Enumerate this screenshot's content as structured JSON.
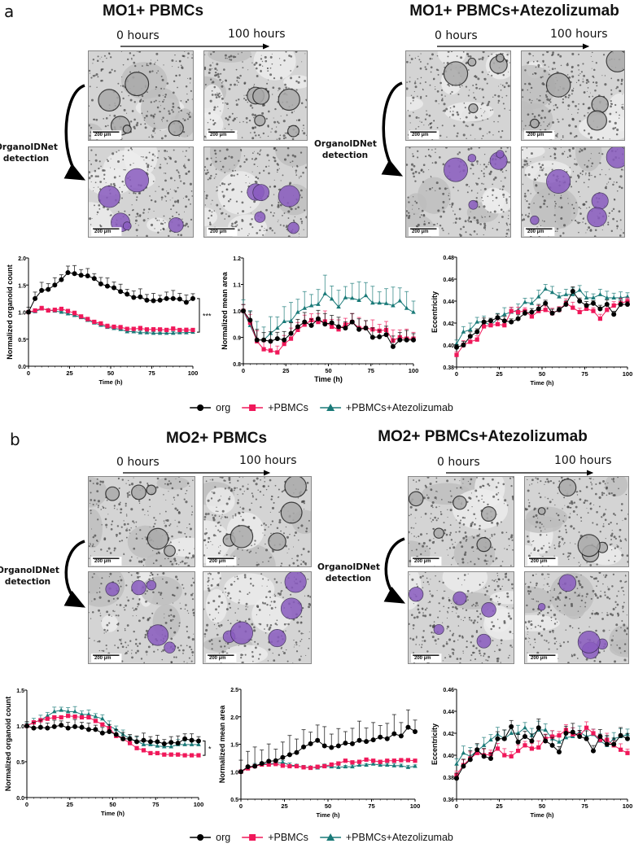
{
  "panels": [
    {
      "letter": "a",
      "left_title": "MO1+ PBMCs",
      "right_title": "MO1+ PBMCs+Atezolizumab",
      "time_start": "0 hours",
      "time_end": "100 hours",
      "detection_label": "OrganoIDNet detection",
      "scale_bar": "200 µm",
      "legend": [
        "org",
        "+PBMCs",
        "+PBMCs+Atezolizumab"
      ]
    },
    {
      "letter": "b",
      "left_title": "MO2+ PBMCs",
      "right_title": "MO2+ PBMCs+Atezolizumab",
      "time_start": "0 hours",
      "time_end": "100 hours",
      "detection_label": "OrganoIDNet detection",
      "scale_bar": "200 µm",
      "legend": [
        "org",
        "+PBMCs",
        "+PBMCs+Atezolizumab"
      ]
    }
  ],
  "colors": {
    "org": "#000000",
    "pbmc": "#f0185a",
    "atezo": "#1a7a78",
    "detection": "#8a5cc0"
  },
  "chart_data": [
    {
      "type": "line",
      "panel": "a",
      "title": "",
      "xlabel": "Time (h)",
      "ylabel": "Normalized organoid count",
      "xlim": [
        0,
        100
      ],
      "ylim": [
        0,
        2.0
      ],
      "xticks": [
        "0",
        "25",
        "50",
        "75",
        "100"
      ],
      "yticks": [
        "0.0",
        "0.5",
        "1.0",
        "1.5",
        "2.0"
      ],
      "significance": "***",
      "x": [
        0,
        4,
        8,
        12,
        16,
        20,
        24,
        28,
        32,
        36,
        40,
        44,
        48,
        52,
        56,
        60,
        64,
        68,
        72,
        76,
        80,
        84,
        88,
        92,
        96,
        100
      ],
      "series": [
        {
          "name": "org",
          "err": 0.15,
          "values": [
            1.0,
            1.25,
            1.4,
            1.42,
            1.5,
            1.6,
            1.73,
            1.71,
            1.68,
            1.67,
            1.62,
            1.52,
            1.48,
            1.45,
            1.38,
            1.33,
            1.27,
            1.28,
            1.22,
            1.21,
            1.22,
            1.25,
            1.25,
            1.24,
            1.18,
            1.25
          ]
        },
        {
          "name": "+PBMCs",
          "err": 0.04,
          "values": [
            1.0,
            1.03,
            1.07,
            1.03,
            1.04,
            1.06,
            1.02,
            0.98,
            0.92,
            0.87,
            0.82,
            0.79,
            0.74,
            0.73,
            0.72,
            0.69,
            0.69,
            0.7,
            0.68,
            0.68,
            0.68,
            0.67,
            0.69,
            0.67,
            0.67,
            0.67
          ]
        },
        {
          "name": "+PBMCs+Atezolizumab",
          "err": 0.03,
          "values": [
            1.0,
            1.01,
            1.06,
            1.04,
            1.02,
            1.0,
            0.97,
            0.94,
            0.9,
            0.85,
            0.8,
            0.76,
            0.72,
            0.7,
            0.68,
            0.64,
            0.64,
            0.62,
            0.62,
            0.61,
            0.61,
            0.61,
            0.61,
            0.62,
            0.62,
            0.63
          ]
        }
      ]
    },
    {
      "type": "line",
      "panel": "a",
      "title": "",
      "xlabel": "Time (h)",
      "ylabel": "Normalized mean area",
      "xlim": [
        0,
        100
      ],
      "ylim": [
        0.8,
        1.2
      ],
      "xticks": [
        "0",
        "25",
        "50",
        "75",
        "100"
      ],
      "yticks": [
        "0.8",
        "0.9",
        "1.0",
        "1.1",
        "1.2"
      ],
      "x": [
        0,
        4,
        8,
        12,
        16,
        20,
        24,
        28,
        32,
        36,
        40,
        44,
        48,
        52,
        56,
        60,
        64,
        68,
        72,
        76,
        80,
        84,
        88,
        92,
        96,
        100
      ],
      "series": [
        {
          "name": "org",
          "err": 0.04,
          "values": [
            1.0,
            0.965,
            0.89,
            0.89,
            0.885,
            0.895,
            0.89,
            0.915,
            0.94,
            0.958,
            0.945,
            0.97,
            0.95,
            0.955,
            0.94,
            0.935,
            0.958,
            0.93,
            0.935,
            0.9,
            0.902,
            0.91,
            0.865,
            0.89,
            0.89,
            0.89
          ]
        },
        {
          "name": "+PBMCs",
          "err": 0.04,
          "values": [
            1.0,
            0.955,
            0.885,
            0.855,
            0.85,
            0.843,
            0.875,
            0.895,
            0.928,
            0.948,
            0.965,
            0.958,
            0.96,
            0.94,
            0.93,
            0.948,
            0.958,
            0.935,
            0.935,
            0.93,
            0.925,
            0.928,
            0.888,
            0.9,
            0.895,
            0.895
          ]
        },
        {
          "name": "+PBMCs+Atezolizumab",
          "err": 0.07,
          "values": [
            1.0,
            0.945,
            0.89,
            0.89,
            0.915,
            0.935,
            0.96,
            0.962,
            0.995,
            1.01,
            1.02,
            1.025,
            1.065,
            1.045,
            1.015,
            1.05,
            1.048,
            1.04,
            1.058,
            1.03,
            1.03,
            1.028,
            1.02,
            1.038,
            1.01,
            0.995
          ]
        }
      ]
    },
    {
      "type": "line",
      "panel": "a",
      "title": "",
      "xlabel": "Time (h)",
      "ylabel": "Eccentricity",
      "xlim": [
        0,
        100
      ],
      "ylim": [
        0.38,
        0.48
      ],
      "xticks": [
        "0",
        "25",
        "50",
        "75",
        "100"
      ],
      "yticks": [
        "0.38",
        "0.40",
        "0.42",
        "0.44",
        "0.46",
        "0.48"
      ],
      "x": [
        0,
        4,
        8,
        12,
        16,
        20,
        24,
        28,
        32,
        36,
        40,
        44,
        48,
        52,
        56,
        60,
        64,
        68,
        72,
        76,
        80,
        84,
        88,
        92,
        96,
        100
      ],
      "series": [
        {
          "name": "org",
          "err": 0.004,
          "values": [
            0.398,
            0.4,
            0.408,
            0.412,
            0.421,
            0.422,
            0.425,
            0.422,
            0.421,
            0.424,
            0.429,
            0.43,
            0.433,
            0.438,
            0.429,
            0.432,
            0.437,
            0.449,
            0.44,
            0.436,
            0.438,
            0.433,
            0.437,
            0.428,
            0.437,
            0.437
          ]
        },
        {
          "name": "+PBMCs",
          "err": 0.005,
          "values": [
            0.391,
            0.4,
            0.403,
            0.405,
            0.417,
            0.418,
            0.419,
            0.418,
            0.431,
            0.43,
            0.431,
            0.426,
            0.431,
            0.432,
            0.429,
            0.432,
            0.438,
            0.434,
            0.43,
            0.433,
            0.431,
            0.424,
            0.432,
            0.436,
            0.438,
            0.44
          ]
        },
        {
          "name": "+PBMCs+Atezolizumab",
          "err": 0.006,
          "values": [
            0.401,
            0.412,
            0.414,
            0.421,
            0.421,
            0.418,
            0.424,
            0.428,
            0.43,
            0.432,
            0.439,
            0.438,
            0.444,
            0.451,
            0.448,
            0.444,
            0.446,
            0.446,
            0.45,
            0.443,
            0.443,
            0.446,
            0.443,
            0.443,
            0.443,
            0.444
          ]
        }
      ]
    },
    {
      "type": "line",
      "panel": "b",
      "title": "",
      "xlabel": "Time (h)",
      "ylabel": "Normalized organoid count",
      "xlim": [
        0,
        100
      ],
      "ylim": [
        0,
        1.5
      ],
      "xticks": [
        "0",
        "25",
        "50",
        "75",
        "100"
      ],
      "yticks": [
        "0.0",
        "0.5",
        "1.0",
        "1.5"
      ],
      "significance": "*",
      "x": [
        0,
        4,
        8,
        12,
        16,
        20,
        24,
        28,
        32,
        36,
        40,
        44,
        48,
        52,
        56,
        60,
        64,
        68,
        72,
        76,
        80,
        84,
        88,
        92,
        96,
        100
      ],
      "series": [
        {
          "name": "org",
          "err": 0.1,
          "values": [
            1.0,
            0.97,
            0.98,
            0.97,
            0.99,
            1.01,
            0.97,
            0.99,
            0.98,
            0.95,
            0.95,
            0.9,
            0.92,
            0.88,
            0.82,
            0.82,
            0.78,
            0.8,
            0.78,
            0.78,
            0.75,
            0.77,
            0.76,
            0.82,
            0.8,
            0.79
          ]
        },
        {
          "name": "+PBMCs",
          "err": 0.02,
          "values": [
            1.0,
            1.05,
            1.08,
            1.1,
            1.12,
            1.12,
            1.14,
            1.13,
            1.12,
            1.12,
            1.07,
            1.02,
            0.97,
            0.86,
            0.82,
            0.76,
            0.69,
            0.66,
            0.62,
            0.62,
            0.6,
            0.6,
            0.6,
            0.59,
            0.59,
            0.59
          ]
        },
        {
          "name": "+PBMCs+Atezolizumab",
          "err": 0.07,
          "values": [
            1.0,
            1.05,
            1.08,
            1.14,
            1.2,
            1.22,
            1.2,
            1.2,
            1.16,
            1.16,
            1.13,
            1.1,
            1.0,
            0.95,
            0.88,
            0.82,
            0.79,
            0.74,
            0.74,
            0.72,
            0.71,
            0.71,
            0.74,
            0.74,
            0.74,
            0.74
          ]
        }
      ]
    },
    {
      "type": "line",
      "panel": "b",
      "title": "",
      "xlabel": "Time (h)",
      "ylabel": "Normalized mean area",
      "xlim": [
        0,
        100
      ],
      "ylim": [
        0.5,
        2.5
      ],
      "xticks": [
        "0",
        "25",
        "50",
        "75",
        "100"
      ],
      "yticks": [
        "0.5",
        "1.0",
        "1.5",
        "2.0",
        "2.5"
      ],
      "x": [
        0,
        4,
        8,
        12,
        16,
        20,
        24,
        28,
        32,
        36,
        40,
        44,
        48,
        52,
        56,
        60,
        64,
        68,
        72,
        76,
        80,
        84,
        88,
        92,
        96,
        100
      ],
      "series": [
        {
          "name": "org",
          "err": 0.35,
          "values": [
            1.0,
            1.09,
            1.1,
            1.15,
            1.19,
            1.2,
            1.26,
            1.31,
            1.35,
            1.45,
            1.51,
            1.57,
            1.47,
            1.44,
            1.47,
            1.52,
            1.51,
            1.57,
            1.55,
            1.58,
            1.63,
            1.6,
            1.69,
            1.65,
            1.81,
            1.73
          ]
        },
        {
          "name": "+PBMCs",
          "err": 0.03,
          "values": [
            1.0,
            1.06,
            1.1,
            1.13,
            1.13,
            1.14,
            1.11,
            1.1,
            1.1,
            1.08,
            1.07,
            1.09,
            1.1,
            1.13,
            1.15,
            1.2,
            1.17,
            1.18,
            1.22,
            1.2,
            1.18,
            1.2,
            1.2,
            1.21,
            1.21,
            1.2
          ]
        },
        {
          "name": "+PBMCs+Atezolizumab",
          "err": 0.04,
          "values": [
            1.0,
            1.07,
            1.11,
            1.14,
            1.15,
            1.15,
            1.17,
            1.12,
            1.11,
            1.08,
            1.08,
            1.07,
            1.1,
            1.09,
            1.08,
            1.09,
            1.09,
            1.12,
            1.12,
            1.14,
            1.12,
            1.12,
            1.11,
            1.11,
            1.08,
            1.1
          ]
        }
      ]
    },
    {
      "type": "line",
      "panel": "b",
      "title": "",
      "xlabel": "Time (h)",
      "ylabel": "Eccentricity",
      "xlim": [
        0,
        100
      ],
      "ylim": [
        0.36,
        0.46
      ],
      "xticks": [
        "0",
        "25",
        "50",
        "75",
        "100"
      ],
      "yticks": [
        "0.36",
        "0.38",
        "0.40",
        "0.42",
        "0.44",
        "0.46"
      ],
      "x": [
        0,
        4,
        8,
        12,
        16,
        20,
        24,
        28,
        32,
        36,
        40,
        44,
        48,
        52,
        56,
        60,
        64,
        68,
        72,
        76,
        80,
        84,
        88,
        92,
        96,
        100
      ],
      "series": [
        {
          "name": "org",
          "err": 0.008,
          "values": [
            0.379,
            0.39,
            0.396,
            0.405,
            0.399,
            0.397,
            0.415,
            0.415,
            0.426,
            0.412,
            0.417,
            0.413,
            0.425,
            0.413,
            0.409,
            0.403,
            0.42,
            0.421,
            0.417,
            0.415,
            0.404,
            0.417,
            0.41,
            0.41,
            0.418,
            0.415
          ]
        },
        {
          "name": "+PBMCs",
          "err": 0.006,
          "values": [
            0.382,
            0.391,
            0.397,
            0.402,
            0.4,
            0.401,
            0.406,
            0.4,
            0.399,
            0.404,
            0.409,
            0.406,
            0.407,
            0.415,
            0.417,
            0.418,
            0.423,
            0.419,
            0.418,
            0.425,
            0.42,
            0.414,
            0.414,
            0.409,
            0.405,
            0.402
          ]
        },
        {
          "name": "+PBMCs+Atezolizumab",
          "err": 0.008,
          "values": [
            0.392,
            0.402,
            0.399,
            0.404,
            0.409,
            0.414,
            0.419,
            0.415,
            0.42,
            0.42,
            0.425,
            0.418,
            0.423,
            0.423,
            0.415,
            0.412,
            0.416,
            0.417,
            0.421,
            0.417,
            0.419,
            0.413,
            0.409,
            0.415,
            0.417,
            0.419
          ]
        }
      ]
    }
  ]
}
